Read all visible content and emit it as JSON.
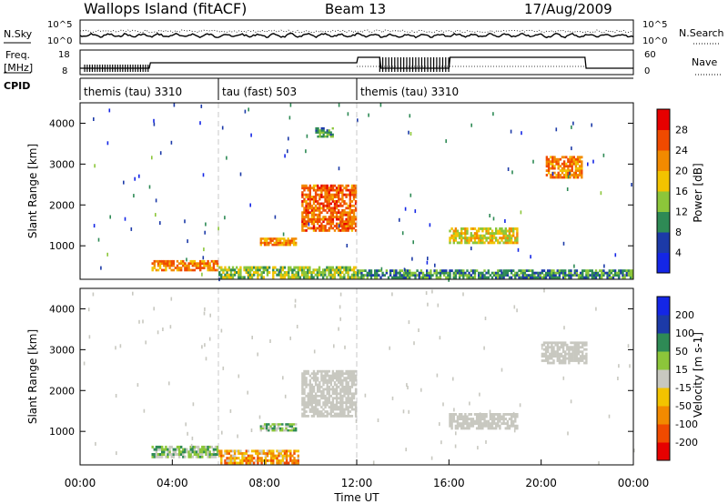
{
  "header": {
    "station": "Wallops Island (fitACF)",
    "beam": "Beam 13",
    "date": "17/Aug/2009"
  },
  "labels": {
    "nsky": "N.Sky",
    "nsearch": "N.Search",
    "freq_line1": "Freq.",
    "freq_line2": "[MHz]",
    "nave": "Nave",
    "cpid": "CPID",
    "noise_left_ticks": [
      "10^5",
      "10^0"
    ],
    "noise_right_ticks": [
      "10^5",
      "10^0"
    ],
    "freq_left_ticks": [
      "18",
      "8"
    ],
    "freq_right_ticks": [
      "60",
      "0"
    ]
  },
  "cpid_segments": [
    {
      "label": "themis (tau) 3310",
      "start_hour": 0
    },
    {
      "label": "tau (fast) 503",
      "start_hour": 6
    },
    {
      "label": "themis (tau) 3310",
      "start_hour": 12
    }
  ],
  "colors": {
    "power": [
      "#1426e6",
      "#1c3aa8",
      "#2e8a55",
      "#8cc63a",
      "#f2c300",
      "#f28a00",
      "#f04a00",
      "#e60000"
    ],
    "velocity": [
      "#e60000",
      "#f04a00",
      "#f28a00",
      "#f2c300",
      "#c8c8c0",
      "#8cc63a",
      "#2e8a55",
      "#1c3aa8",
      "#1426e6"
    ]
  },
  "chart_data": [
    {
      "type": "heatmap",
      "panel": "power",
      "ylabel": "Slant Range [km]",
      "ylim": [
        180,
        4500
      ],
      "yticks": [
        1000,
        2000,
        3000,
        4000
      ],
      "xlim": [
        0,
        24
      ],
      "colorbar": {
        "label": "Power [dB]",
        "ticks": [
          "4",
          "8",
          "12",
          "16",
          "20",
          "24",
          "28"
        ]
      },
      "features": [
        {
          "t0": 3.1,
          "t1": 6.0,
          "r0": 380,
          "r1": 650,
          "level": 0.75
        },
        {
          "t0": 6.0,
          "t1": 12.0,
          "r0": 200,
          "r1": 500,
          "level": 0.45
        },
        {
          "t0": 9.6,
          "t1": 12.0,
          "r0": 1350,
          "r1": 2500,
          "level": 0.8
        },
        {
          "t0": 7.8,
          "t1": 9.4,
          "r0": 1000,
          "r1": 1200,
          "level": 0.7
        },
        {
          "t0": 16.0,
          "t1": 19.0,
          "r0": 1050,
          "r1": 1450,
          "level": 0.55
        },
        {
          "t0": 20.2,
          "t1": 21.8,
          "r0": 2650,
          "r1": 3200,
          "level": 0.75
        },
        {
          "t0": 10.2,
          "t1": 11.0,
          "r0": 3650,
          "r1": 3900,
          "level": 0.3
        },
        {
          "t0": 12.0,
          "t1": 24.0,
          "r0": 200,
          "r1": 420,
          "level": 0.3
        }
      ]
    },
    {
      "type": "heatmap",
      "panel": "velocity",
      "ylabel": "Slant Range [km]",
      "xlabel": "Time UT",
      "ylim": [
        180,
        4500
      ],
      "yticks": [
        1000,
        2000,
        3000,
        4000
      ],
      "xlim": [
        0,
        24
      ],
      "xticks": [
        "00:00",
        "04:00",
        "08:00",
        "12:00",
        "16:00",
        "20:00",
        "00:00"
      ],
      "colorbar": {
        "label": "Velocity [m s-1]",
        "ticks": [
          "-200",
          "-100",
          "-50",
          "-15",
          "15",
          "50",
          "100",
          "200"
        ]
      },
      "features": [
        {
          "t0": 3.1,
          "t1": 6.0,
          "r0": 350,
          "r1": 650,
          "level": 0.62
        },
        {
          "t0": 6.0,
          "t1": 9.5,
          "r0": 200,
          "r1": 550,
          "level": 0.3
        },
        {
          "t0": 9.6,
          "t1": 12.0,
          "r0": 1350,
          "r1": 2500,
          "level": 0.45
        },
        {
          "t0": 7.8,
          "t1": 9.4,
          "r0": 1000,
          "r1": 1200,
          "level": 0.62
        },
        {
          "t0": 16.0,
          "t1": 19.0,
          "r0": 1050,
          "r1": 1450,
          "level": 0.45
        },
        {
          "t0": 20.0,
          "t1": 22.0,
          "r0": 2650,
          "r1": 3200,
          "level": 0.45
        }
      ]
    }
  ]
}
